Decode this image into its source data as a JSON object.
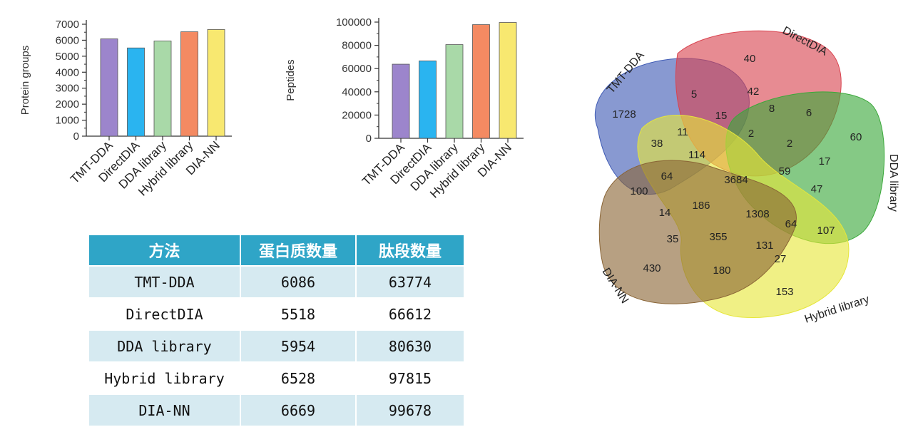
{
  "chart_data": [
    {
      "type": "bar",
      "ylabel": "Protein groups",
      "categories": [
        "TMT-DDA",
        "DirectDIA",
        "DDA library",
        "Hybrid library",
        "DIA-NN"
      ],
      "values": [
        6086,
        5518,
        5954,
        6528,
        6669
      ],
      "colors": [
        "#9c85cc",
        "#2ab4f0",
        "#a9d9a8",
        "#f48a62",
        "#f8e870"
      ],
      "yticks": [
        0,
        1000,
        2000,
        3000,
        4000,
        5000,
        6000,
        7000
      ],
      "ylim": [
        0,
        7000
      ]
    },
    {
      "type": "bar",
      "ylabel": "Peptides",
      "categories": [
        "TMT-DDA",
        "DirectDIA",
        "DDA library",
        "Hybrid library",
        "DIA-NN"
      ],
      "values": [
        63774,
        66612,
        80630,
        97815,
        99678
      ],
      "colors": [
        "#9c85cc",
        "#2ab4f0",
        "#a9d9a8",
        "#f48a62",
        "#f8e870"
      ],
      "yticks": [
        0,
        20000,
        40000,
        60000,
        80000,
        100000
      ],
      "ylim": [
        0,
        100000
      ]
    },
    {
      "type": "venn",
      "sets": [
        {
          "name": "TMT-DDA",
          "color": "#3f5bb5"
        },
        {
          "name": "DirectDIA",
          "color": "#d9434f"
        },
        {
          "name": "DDA library",
          "color": "#3aa83a"
        },
        {
          "name": "Hybrid library",
          "color": "#e6e63a"
        },
        {
          "name": "DIA-NN",
          "color": "#8a6536"
        }
      ],
      "region_counts": [
        "1728",
        "40",
        "60",
        "153",
        "430",
        "5",
        "42",
        "8",
        "6",
        "15",
        "2",
        "11",
        "38",
        "114",
        "2",
        "17",
        "3684",
        "59",
        "47",
        "64",
        "100",
        "186",
        "14",
        "1308",
        "64",
        "107",
        "35",
        "355",
        "131",
        "27",
        "180"
      ]
    }
  ],
  "table": {
    "headers": [
      "方法",
      "蛋白质数量",
      "肽段数量"
    ],
    "rows": [
      [
        "TMT-DDA",
        "6086",
        "63774"
      ],
      [
        "DirectDIA",
        "5518",
        "66612"
      ],
      [
        "DDA library",
        "5954",
        "80630"
      ],
      [
        "Hybrid library",
        "6528",
        "97815"
      ],
      [
        "DIA-NN",
        "6669",
        "99678"
      ]
    ]
  }
}
